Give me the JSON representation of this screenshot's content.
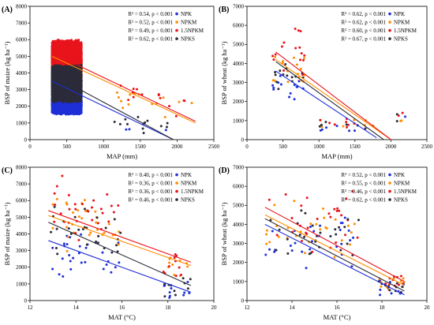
{
  "colors": {
    "NPK": "#1f2fd6",
    "NPKM": "#ff8c00",
    "1.5NPKM": "#e8141c",
    "NPKS": "#2b2b3a"
  },
  "chart_data": [
    {
      "type": "scatter",
      "panel_label": "(A)",
      "xlabel": "MAP (mm)",
      "ylabel": "BSP of maize (kg ha⁻¹)",
      "xlim": [
        0,
        2500
      ],
      "ylim": [
        0,
        8000
      ],
      "xticks": [
        0,
        500,
        1000,
        1500,
        2000,
        2500
      ],
      "yticks": [
        0,
        1000,
        2000,
        3000,
        4000,
        5000,
        6000,
        7000,
        8000
      ],
      "stats_position": "top-right",
      "series": [
        {
          "name": "NPK",
          "stat": "R² = 0.54, p < 0.001",
          "fit": [
            [
              300,
              3500
            ],
            [
              1950,
              0
            ]
          ],
          "cloud": [
            [
              300,
              700,
              1500,
              2800,
              4400
            ],
            [
              1100,
              1400,
              0,
              1200,
              0
            ],
            [
              1300,
              1950,
              400,
              900,
              3
            ]
          ],
          "seed": 101
        },
        {
          "name": "NPKM",
          "stat": "R² = 0.52, p < 0.001",
          "fit": [
            [
              300,
              5000
            ],
            [
              2250,
              1000
            ]
          ],
          "cloud": [
            [
              300,
              700,
              3500,
              5200,
              7300
            ],
            [
              1100,
              1800,
              1800,
              3000,
              10
            ],
            [
              1800,
              2250,
              1200,
              2700,
              4
            ]
          ],
          "seed": 202
        },
        {
          "name": "1.5NPKM",
          "stat": "R² = 0.49, p < 0.001",
          "fit": [
            [
              300,
              5200
            ],
            [
              2250,
              1100
            ]
          ],
          "cloud": [
            [
              300,
              700,
              3800,
              6000,
              7800
            ],
            [
              1100,
              1800,
              1800,
              3500,
              10
            ],
            [
              1800,
              2250,
              1300,
              2800,
              4
            ]
          ],
          "seed": 303
        },
        {
          "name": "NPKS",
          "stat": "R² = 0.62, p < 0.001",
          "fit": [
            [
              300,
              3900
            ],
            [
              1950,
              0
            ]
          ],
          "cloud": [
            [
              300,
              700,
              2200,
              4500,
              6300
            ],
            [
              1100,
              1600,
              0,
              1600,
              10
            ],
            [
              1600,
              2000,
              500,
              1200,
              3
            ]
          ],
          "seed": 404
        }
      ]
    },
    {
      "type": "scatter",
      "panel_label": "(B)",
      "xlabel": "MAP (mm)",
      "ylabel": "BSP of wheat (kg ha⁻¹)",
      "xlim": [
        0,
        2500
      ],
      "ylim": [
        0,
        7000
      ],
      "xticks": [
        0,
        500,
        1000,
        1500,
        2000,
        2500
      ],
      "yticks": [
        0,
        1000,
        2000,
        3000,
        4000,
        5000,
        6000,
        7000
      ],
      "stats_position": "top-right",
      "series": [
        {
          "name": "NPK",
          "stat": "R² = 0.62, p < 0.001",
          "fit": [
            [
              400,
              3600
            ],
            [
              1800,
              100
            ]
          ],
          "cloud": [
            [
              350,
              800,
              2000,
              3600,
              14
            ],
            [
              1000,
              1700,
              150,
              1000,
              6
            ],
            [
              2100,
              2200,
              1100,
              1300,
              1
            ]
          ],
          "seed": 111
        },
        {
          "name": "NPKM",
          "stat": "R² = 0.62, p < 0.001",
          "fit": [
            [
              400,
              4200
            ],
            [
              2000,
              0
            ]
          ],
          "cloud": [
            [
              350,
              800,
              2600,
              5000,
              16
            ],
            [
              1000,
              1800,
              300,
              1200,
              8
            ],
            [
              2000,
              2250,
              900,
              1400,
              2
            ]
          ],
          "seed": 222
        },
        {
          "name": "1.5NPKM",
          "stat": "R² = 0.60, p < 0.001",
          "fit": [
            [
              400,
              4600
            ],
            [
              2000,
              0
            ]
          ],
          "cloud": [
            [
              350,
              800,
              2800,
              6400,
              16
            ],
            [
              1000,
              1800,
              300,
              1400,
              8
            ],
            [
              2000,
              2250,
              1000,
              1500,
              2
            ]
          ],
          "seed": 333
        },
        {
          "name": "NPKS",
          "stat": "R² = 0.67, p < 0.001",
          "fit": [
            [
              400,
              4100
            ],
            [
              1900,
              0
            ]
          ],
          "cloud": [
            [
              350,
              800,
              2400,
              4700,
              14
            ],
            [
              1000,
              1700,
              250,
              1100,
              6
            ],
            [
              2000,
              2200,
              400,
              1400,
              2
            ]
          ],
          "seed": 444
        }
      ]
    },
    {
      "type": "scatter",
      "panel_label": "(C)",
      "xlabel": "MAT (°C)",
      "ylabel": "BSP of maize (kg ha⁻¹)",
      "xlim": [
        12,
        20
      ],
      "ylim": [
        0,
        8000
      ],
      "xticks": [
        12,
        14,
        16,
        18,
        20
      ],
      "yticks": [
        0,
        1000,
        2000,
        3000,
        4000,
        5000,
        6000,
        7000,
        8000
      ],
      "stats_position": "top-right",
      "series": [
        {
          "name": "NPK",
          "stat": "R² = 0.40, p < 0.001",
          "fit": [
            [
              12.8,
              3600
            ],
            [
              19,
              500
            ]
          ],
          "cloud": [
            [
              12.8,
              16,
              1400,
              4400,
              30
            ],
            [
              17.8,
              19,
              0,
              1500,
              10
            ]
          ],
          "seed": 121
        },
        {
          "name": "NPKM",
          "stat": "R² = 0.36, p < 0.001",
          "fit": [
            [
              12.8,
              5100
            ],
            [
              19,
              2100
            ]
          ],
          "cloud": [
            [
              12.8,
              16,
              2800,
              6500,
              30
            ],
            [
              17.8,
              19,
              1200,
              2800,
              10
            ]
          ],
          "seed": 232
        },
        {
          "name": "1.5NPKM",
          "stat": "R² = 0.36, p < 0.001",
          "fit": [
            [
              12.8,
              5400
            ],
            [
              19,
              2300
            ]
          ],
          "cloud": [
            [
              12.8,
              16,
              3000,
              7800,
              30
            ],
            [
              17.8,
              19,
              1300,
              3000,
              10
            ]
          ],
          "seed": 343
        },
        {
          "name": "NPKS",
          "stat": "R² = 0.46, p < 0.001",
          "fit": [
            [
              12.8,
              4700
            ],
            [
              19,
              900
            ]
          ],
          "cloud": [
            [
              12.8,
              16,
              1800,
              6200,
              28
            ],
            [
              17.8,
              19,
              0,
              1800,
              10
            ]
          ],
          "seed": 454
        }
      ]
    },
    {
      "type": "scatter",
      "panel_label": "(D)",
      "xlabel": "MAT (°C)",
      "ylabel": "BSP of wheat (kg ha⁻¹)",
      "xlim": [
        12,
        20
      ],
      "ylim": [
        0,
        7000
      ],
      "xticks": [
        12,
        14,
        16,
        18,
        20
      ],
      "yticks": [
        0,
        1000,
        2000,
        3000,
        4000,
        5000,
        6000,
        7000
      ],
      "stats_position": "top-right",
      "series": [
        {
          "name": "NPK",
          "stat": "R² = 0.52, p < 0.001",
          "fit": [
            [
              12.8,
              4000
            ],
            [
              19,
              300
            ]
          ],
          "cloud": [
            [
              12.8,
              17,
              1600,
              4800,
              28
            ],
            [
              17.8,
              19,
              100,
              1200,
              10
            ]
          ],
          "seed": 131
        },
        {
          "name": "NPKM",
          "stat": "R² = 0.55, p < 0.001",
          "fit": [
            [
              12.8,
              4500
            ],
            [
              19,
              800
            ]
          ],
          "cloud": [
            [
              12.8,
              17,
              2100,
              5700,
              28
            ],
            [
              17.8,
              19,
              400,
              1400,
              10
            ]
          ],
          "seed": 242
        },
        {
          "name": "1.5NPKM",
          "stat": "R² = 0.46, p < 0.001",
          "fit": [
            [
              12.8,
              4900
            ],
            [
              19,
              1000
            ]
          ],
          "cloud": [
            [
              12.8,
              17,
              2300,
              6400,
              28
            ],
            [
              17.8,
              19,
              500,
              1500,
              10
            ]
          ],
          "seed": 353
        },
        {
          "name": "NPKS",
          "stat": "R² = 0.62, p < 0.001",
          "fit": [
            [
              12.8,
              4300
            ],
            [
              19,
              500
            ]
          ],
          "cloud": [
            [
              12.8,
              17,
              1900,
              5200,
              28
            ],
            [
              17.8,
              19,
              200,
              1300,
              10
            ]
          ],
          "seed": 464
        }
      ]
    }
  ]
}
